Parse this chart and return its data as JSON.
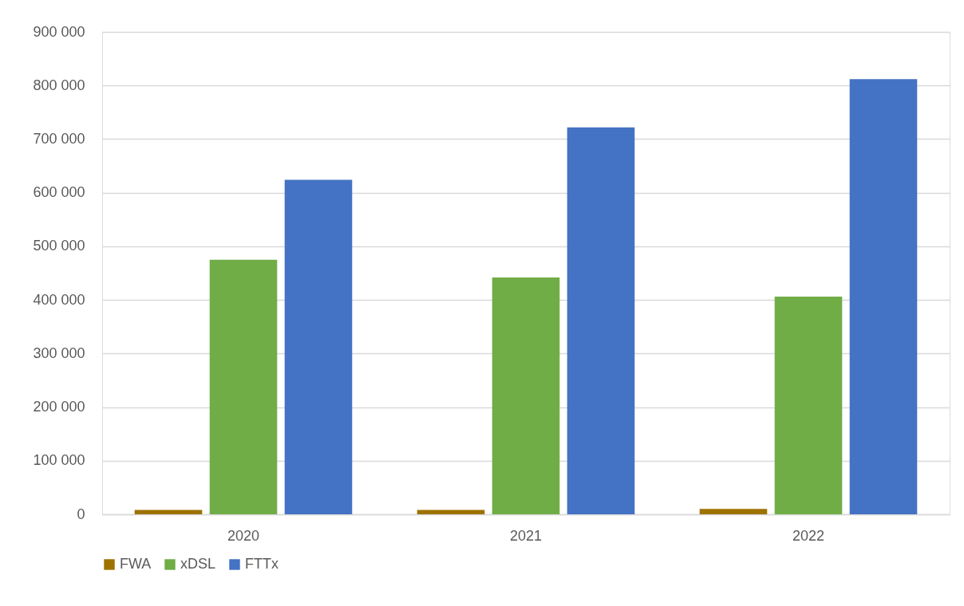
{
  "chart_data": {
    "type": "bar",
    "categories": [
      "2020",
      "2021",
      "2022"
    ],
    "series": [
      {
        "name": "FWA",
        "color": "#9e7200",
        "values": [
          8000,
          8000,
          10000
        ]
      },
      {
        "name": "xDSL",
        "color": "#70ad47",
        "values": [
          475000,
          442000,
          406000
        ]
      },
      {
        "name": "FTTx",
        "color": "#4472c4",
        "values": [
          624000,
          722000,
          812000
        ]
      }
    ],
    "ylim": [
      0,
      900000
    ],
    "yticks": [
      0,
      100000,
      200000,
      300000,
      400000,
      500000,
      600000,
      700000,
      800000,
      900000
    ],
    "grid": "y",
    "legend": "bottom"
  }
}
